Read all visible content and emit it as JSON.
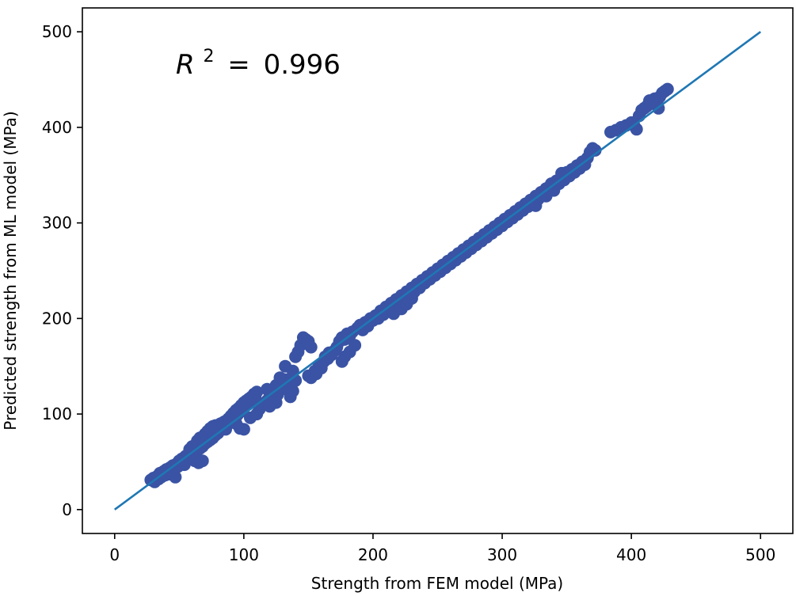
{
  "chart_data": {
    "type": "scatter",
    "title": "",
    "xlabel": "Strength from FEM model (MPa)",
    "ylabel": "Predicted strength from ML model (MPa)",
    "xlim": [
      -25,
      525
    ],
    "ylim": [
      -25,
      525
    ],
    "xticks": [
      0,
      100,
      200,
      300,
      400,
      500
    ],
    "yticks": [
      0,
      100,
      200,
      300,
      400,
      500
    ],
    "grid": false,
    "annotation": {
      "symbol": "R",
      "exponent": "2",
      "equals": "=",
      "value": "0.996"
    },
    "reference_line": {
      "x": [
        0,
        500
      ],
      "y": [
        0,
        500
      ],
      "color": "#1f77b4"
    },
    "point_color": "#3a53a4",
    "points": [
      [
        28,
        31
      ],
      [
        30,
        33
      ],
      [
        31,
        29
      ],
      [
        33,
        35
      ],
      [
        34,
        32
      ],
      [
        35,
        38
      ],
      [
        36,
        34
      ],
      [
        38,
        40
      ],
      [
        39,
        36
      ],
      [
        40,
        42
      ],
      [
        41,
        39
      ],
      [
        42,
        37
      ],
      [
        43,
        44
      ],
      [
        44,
        41
      ],
      [
        45,
        46
      ],
      [
        46,
        43
      ],
      [
        47,
        34
      ],
      [
        48,
        48
      ],
      [
        49,
        45
      ],
      [
        50,
        51
      ],
      [
        51,
        48
      ],
      [
        52,
        53
      ],
      [
        53,
        50
      ],
      [
        54,
        47
      ],
      [
        55,
        56
      ],
      [
        56,
        53
      ],
      [
        57,
        58
      ],
      [
        58,
        55
      ],
      [
        59,
        61
      ],
      [
        60,
        57
      ],
      [
        61,
        64
      ],
      [
        62,
        60
      ],
      [
        63,
        66
      ],
      [
        64,
        62
      ],
      [
        65,
        68
      ],
      [
        66,
        64
      ],
      [
        67,
        70
      ],
      [
        68,
        66
      ],
      [
        69,
        73
      ],
      [
        70,
        69
      ],
      [
        71,
        75
      ],
      [
        72,
        71
      ],
      [
        73,
        77
      ],
      [
        74,
        73
      ],
      [
        75,
        79
      ],
      [
        76,
        75
      ],
      [
        77,
        81
      ],
      [
        78,
        78
      ],
      [
        79,
        84
      ],
      [
        80,
        80
      ],
      [
        62,
        51
      ],
      [
        65,
        49
      ],
      [
        68,
        51
      ],
      [
        58,
        63
      ],
      [
        60,
        66
      ],
      [
        64,
        72
      ],
      [
        66,
        75
      ],
      [
        70,
        79
      ],
      [
        72,
        82
      ],
      [
        74,
        85
      ],
      [
        76,
        87
      ],
      [
        78,
        88
      ],
      [
        80,
        86
      ],
      [
        82,
        90
      ],
      [
        84,
        88
      ],
      [
        85,
        92
      ],
      [
        86,
        84
      ],
      [
        88,
        95
      ],
      [
        89,
        91
      ],
      [
        90,
        98
      ],
      [
        91,
        94
      ],
      [
        92,
        101
      ],
      [
        93,
        97
      ],
      [
        94,
        104
      ],
      [
        95,
        99
      ],
      [
        96,
        106
      ],
      [
        97,
        102
      ],
      [
        98,
        109
      ],
      [
        99,
        105
      ],
      [
        100,
        112
      ],
      [
        101,
        108
      ],
      [
        102,
        114
      ],
      [
        103,
        110
      ],
      [
        104,
        116
      ],
      [
        105,
        112
      ],
      [
        106,
        118
      ],
      [
        107,
        114
      ],
      [
        108,
        121
      ],
      [
        109,
        116
      ],
      [
        110,
        123
      ],
      [
        94,
        90
      ],
      [
        97,
        85
      ],
      [
        100,
        84
      ],
      [
        105,
        96
      ],
      [
        110,
        100
      ],
      [
        112,
        105
      ],
      [
        115,
        110
      ],
      [
        118,
        114
      ],
      [
        120,
        118
      ],
      [
        122,
        115
      ],
      [
        124,
        123
      ],
      [
        125,
        130
      ],
      [
        126,
        120
      ],
      [
        128,
        133
      ],
      [
        130,
        128
      ],
      [
        132,
        136
      ],
      [
        134,
        125
      ],
      [
        136,
        118
      ],
      [
        138,
        124
      ],
      [
        140,
        135
      ],
      [
        120,
        108
      ],
      [
        125,
        112
      ],
      [
        118,
        126
      ],
      [
        128,
        138
      ],
      [
        132,
        150
      ],
      [
        134,
        128
      ],
      [
        136,
        131
      ],
      [
        138,
        145
      ],
      [
        140,
        160
      ],
      [
        142,
        165
      ],
      [
        144,
        172
      ],
      [
        146,
        180
      ],
      [
        148,
        178
      ],
      [
        150,
        176
      ],
      [
        152,
        170
      ],
      [
        155,
        145
      ],
      [
        158,
        150
      ],
      [
        160,
        148
      ],
      [
        162,
        155
      ],
      [
        165,
        158
      ],
      [
        150,
        140
      ],
      [
        152,
        138
      ],
      [
        156,
        142
      ],
      [
        160,
        152
      ],
      [
        163,
        160
      ],
      [
        166,
        164
      ],
      [
        168,
        162
      ],
      [
        170,
        166
      ],
      [
        172,
        170
      ],
      [
        174,
        176
      ],
      [
        176,
        180
      ],
      [
        178,
        178
      ],
      [
        180,
        184
      ],
      [
        182,
        182
      ],
      [
        184,
        186
      ],
      [
        176,
        155
      ],
      [
        178,
        160
      ],
      [
        182,
        165
      ],
      [
        186,
        172
      ],
      [
        188,
        190
      ],
      [
        190,
        193
      ],
      [
        192,
        188
      ],
      [
        194,
        196
      ],
      [
        196,
        192
      ],
      [
        198,
        200
      ],
      [
        200,
        198
      ],
      [
        202,
        203
      ],
      [
        204,
        200
      ],
      [
        206,
        208
      ],
      [
        208,
        204
      ],
      [
        210,
        212
      ],
      [
        212,
        208
      ],
      [
        214,
        216
      ],
      [
        216,
        212
      ],
      [
        218,
        220
      ],
      [
        220,
        216
      ],
      [
        222,
        224
      ],
      [
        224,
        220
      ],
      [
        226,
        228
      ],
      [
        228,
        224
      ],
      [
        230,
        232
      ],
      [
        232,
        228
      ],
      [
        234,
        236
      ],
      [
        236,
        232
      ],
      [
        238,
        240
      ],
      [
        240,
        237
      ],
      [
        242,
        244
      ],
      [
        244,
        241
      ],
      [
        246,
        248
      ],
      [
        248,
        245
      ],
      [
        216,
        205
      ],
      [
        222,
        210
      ],
      [
        226,
        215
      ],
      [
        230,
        221
      ],
      [
        250,
        252
      ],
      [
        252,
        249
      ],
      [
        254,
        256
      ],
      [
        256,
        253
      ],
      [
        258,
        260
      ],
      [
        260,
        257
      ],
      [
        262,
        264
      ],
      [
        264,
        261
      ],
      [
        266,
        268
      ],
      [
        268,
        265
      ],
      [
        270,
        272
      ],
      [
        272,
        269
      ],
      [
        274,
        276
      ],
      [
        276,
        273
      ],
      [
        278,
        280
      ],
      [
        280,
        277
      ],
      [
        282,
        284
      ],
      [
        284,
        281
      ],
      [
        286,
        288
      ],
      [
        288,
        285
      ],
      [
        290,
        292
      ],
      [
        292,
        289
      ],
      [
        294,
        296
      ],
      [
        296,
        293
      ],
      [
        298,
        300
      ],
      [
        300,
        297
      ],
      [
        302,
        304
      ],
      [
        304,
        301
      ],
      [
        306,
        308
      ],
      [
        308,
        305
      ],
      [
        310,
        312
      ],
      [
        312,
        309
      ],
      [
        314,
        316
      ],
      [
        316,
        313
      ],
      [
        318,
        320
      ],
      [
        320,
        317
      ],
      [
        322,
        324
      ],
      [
        324,
        321
      ],
      [
        326,
        328
      ],
      [
        328,
        325
      ],
      [
        330,
        332
      ],
      [
        332,
        329
      ],
      [
        334,
        336
      ],
      [
        336,
        333
      ],
      [
        338,
        341
      ],
      [
        340,
        337
      ],
      [
        342,
        344
      ],
      [
        344,
        341
      ],
      [
        346,
        348
      ],
      [
        348,
        345
      ],
      [
        350,
        353
      ],
      [
        352,
        349
      ],
      [
        354,
        356
      ],
      [
        356,
        353
      ],
      [
        358,
        360
      ],
      [
        360,
        357
      ],
      [
        362,
        364
      ],
      [
        364,
        361
      ],
      [
        366,
        368
      ],
      [
        368,
        374
      ],
      [
        370,
        378
      ],
      [
        372,
        376
      ],
      [
        326,
        318
      ],
      [
        334,
        328
      ],
      [
        340,
        334
      ],
      [
        346,
        352
      ],
      [
        384,
        395
      ],
      [
        388,
        397
      ],
      [
        392,
        400
      ],
      [
        396,
        402
      ],
      [
        400,
        405
      ],
      [
        402,
        402
      ],
      [
        404,
        398
      ],
      [
        406,
        412
      ],
      [
        408,
        418
      ],
      [
        410,
        420
      ],
      [
        412,
        422
      ],
      [
        414,
        428
      ],
      [
        416,
        425
      ],
      [
        418,
        430
      ],
      [
        420,
        428
      ],
      [
        422,
        432
      ],
      [
        424,
        436
      ],
      [
        426,
        438
      ],
      [
        428,
        440
      ],
      [
        421,
        420
      ]
    ]
  }
}
